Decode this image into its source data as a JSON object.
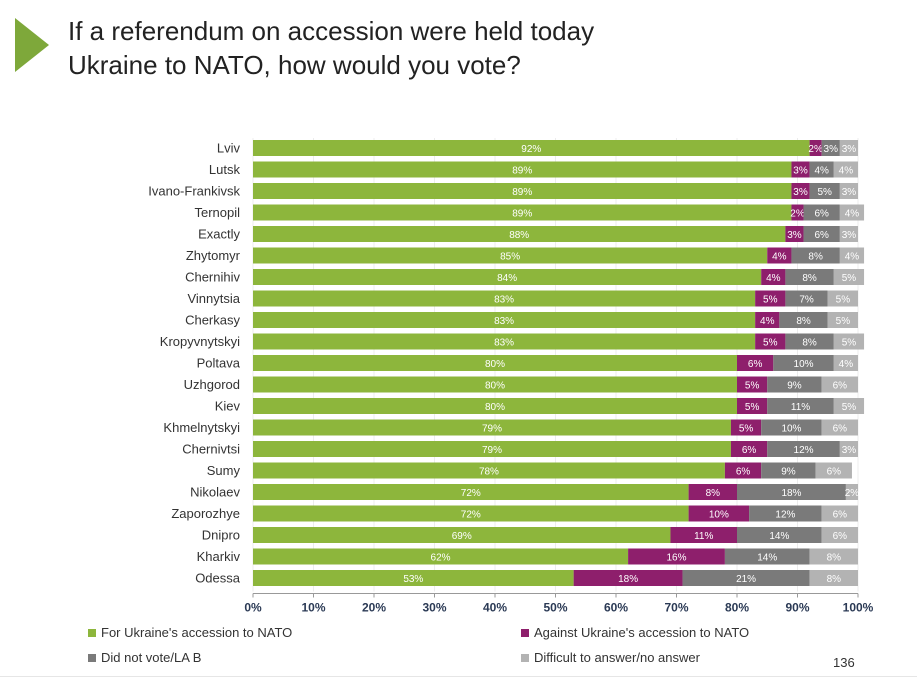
{
  "title_line1": "If a referendum on accession were held today",
  "title_line2": "Ukraine to NATO, how would you vote?",
  "page_number": "136",
  "colors": {
    "for": "#8db63c",
    "against": "#8e1f6c",
    "did_not_vote": "#7a7a7a",
    "difficult": "#b3b3b3",
    "title_arrow": "#7ea83a"
  },
  "chart_data": {
    "type": "bar",
    "orientation": "horizontal",
    "stacked": true,
    "xlim": [
      0,
      100
    ],
    "x_ticks": [
      "0%",
      "10%",
      "20%",
      "30%",
      "40%",
      "50%",
      "60%",
      "70%",
      "80%",
      "90%",
      "100%"
    ],
    "categories": [
      "Lviv",
      "Lutsk",
      "Ivano-Frankivsk",
      "Ternopil",
      "Exactly",
      "Zhytomyr",
      "Chernihiv",
      "Vinnytsia",
      "Cherkasy",
      "Kropyvnytskyi",
      "Poltava",
      "Uzhgorod",
      "Kiev",
      "Khmelnytskyi",
      "Chernivtsi",
      "Sumy",
      "Nikolaev",
      "Zaporozhye",
      "Dnipro",
      "Kharkiv",
      "Odessa"
    ],
    "series": [
      {
        "name": "For Ukraine's accession to NATO",
        "color": "#8db63c",
        "values": [
          92,
          89,
          89,
          89,
          88,
          85,
          84,
          83,
          83,
          83,
          80,
          80,
          80,
          79,
          79,
          78,
          72,
          72,
          69,
          62,
          53
        ]
      },
      {
        "name": "Against Ukraine's accession to NATO",
        "color": "#8e1f6c",
        "values": [
          2,
          3,
          3,
          2,
          3,
          4,
          4,
          5,
          4,
          5,
          6,
          5,
          5,
          5,
          6,
          6,
          8,
          10,
          11,
          16,
          18
        ]
      },
      {
        "name": "Did not vote/LA B",
        "color": "#7a7a7a",
        "values": [
          3,
          4,
          5,
          6,
          6,
          8,
          8,
          7,
          8,
          8,
          10,
          9,
          11,
          10,
          12,
          9,
          18,
          12,
          14,
          14,
          21
        ]
      },
      {
        "name": "Difficult to answer/no answer",
        "color": "#b3b3b3",
        "values": [
          3,
          4,
          3,
          4,
          3,
          4,
          5,
          5,
          5,
          5,
          4,
          6,
          5,
          6,
          3,
          6,
          2,
          6,
          6,
          8,
          8
        ]
      }
    ],
    "legend_position": "bottom"
  }
}
